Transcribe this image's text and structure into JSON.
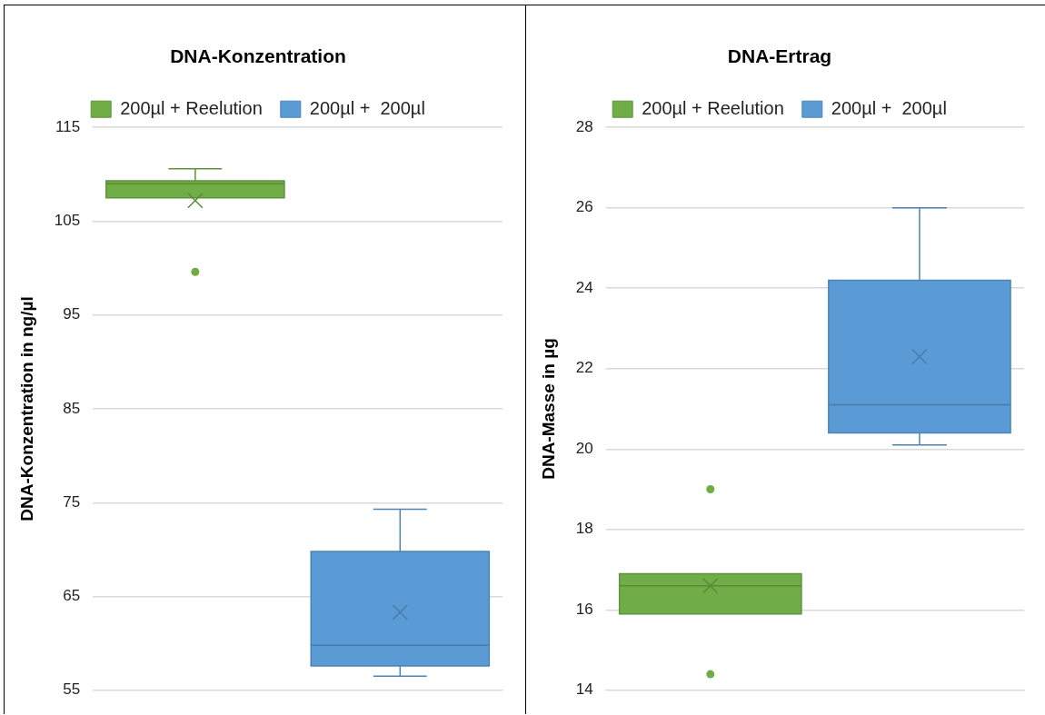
{
  "chart_data": [
    {
      "type": "box",
      "title": "DNA-Konzentration",
      "ylabel": "DNA-Konzentration in ng/µl",
      "categories": [
        null
      ],
      "ylim": [
        55,
        115
      ],
      "yticks": [
        55,
        65,
        75,
        85,
        95,
        105,
        115
      ],
      "grid": "y",
      "legend": "top",
      "series": [
        {
          "name": "200µl + Reelution",
          "color": "#70ad47",
          "boxes": [
            {
              "low": 107.5,
              "q1": 107.5,
              "median": 109.0,
              "q3": 109.3,
              "high": 110.6,
              "mean": 107.2,
              "outliers": [
                99.6
              ]
            }
          ]
        },
        {
          "name": "200µl +  200µl",
          "color": "#5b9bd5",
          "boxes": [
            {
              "low": 56.5,
              "q1": 57.6,
              "median": 59.8,
              "q3": 69.8,
              "high": 74.3,
              "mean": 63.3
            }
          ]
        }
      ]
    },
    {
      "type": "box",
      "title": "DNA-Ertrag",
      "ylabel": "DNA-Masse in µg",
      "categories": [
        null
      ],
      "ylim": [
        14,
        28
      ],
      "yticks": [
        14,
        16,
        18,
        20,
        22,
        24,
        26,
        28
      ],
      "grid": "y",
      "legend": "top",
      "series": [
        {
          "name": "200µl + Reelution",
          "color": "#70ad47",
          "boxes": [
            {
              "low": 15.9,
              "q1": 15.9,
              "median": 16.6,
              "q3": 16.9,
              "high": 16.9,
              "mean": 16.6,
              "outliers": [
                19.0,
                14.4
              ]
            }
          ]
        },
        {
          "name": "200µl +  200µl",
          "color": "#5b9bd5",
          "boxes": [
            {
              "low": 20.1,
              "q1": 20.4,
              "median": 21.1,
              "q3": 24.2,
              "high": 26.0,
              "mean": 22.3
            }
          ]
        }
      ]
    }
  ]
}
